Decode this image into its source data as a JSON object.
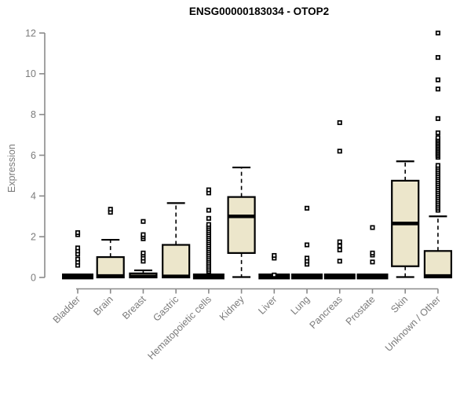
{
  "chart_data": {
    "type": "boxplot",
    "title": "ENSG00000183034 - OTOP2",
    "ylabel": "Expression",
    "xlabel": "",
    "ylim": [
      0,
      12
    ],
    "yticks": [
      0,
      2,
      4,
      6,
      8,
      10,
      12
    ],
    "grid": false,
    "legend": false,
    "style": {
      "box_fill": "#ECE6CB",
      "box_border": "#000000",
      "median_color": "#000000",
      "whisker_color": "#000000",
      "outlier_color": "#000000",
      "axis": "#8a8a8a",
      "tick_text": "#7b7b7b",
      "title_color": "#000000"
    },
    "categories": [
      "Bladder",
      "Brain",
      "Breast",
      "Gastric",
      "Hematopoietic cells",
      "Kidney",
      "Liver",
      "Lung",
      "Pancreas",
      "Prostate",
      "Skin",
      "Unknown / Other"
    ],
    "series": [
      {
        "label": "Bladder",
        "q1": 0,
        "median": 0.05,
        "q3": 0.1,
        "whisker_low": null,
        "whisker_high": null,
        "outliers": [
          0.6,
          0.75,
          0.9,
          1.15,
          1.3,
          1.45,
          2.1,
          2.2
        ]
      },
      {
        "label": "Brain",
        "q1": 0,
        "median": 0.07,
        "q3": 1.0,
        "whisker_low": null,
        "whisker_high": 1.85,
        "outliers": [
          3.2,
          3.35
        ]
      },
      {
        "label": "Breast",
        "q1": 0,
        "median": 0.05,
        "q3": 0.2,
        "whisker_low": null,
        "whisker_high": 0.35,
        "outliers": [
          0.8,
          0.95,
          1.1,
          1.2,
          1.9,
          2.0,
          2.1,
          2.75
        ]
      },
      {
        "label": "Gastric",
        "q1": 0,
        "median": 0.05,
        "q3": 1.6,
        "whisker_low": null,
        "whisker_high": 3.65,
        "outliers": []
      },
      {
        "label": "Hematopoietic cells",
        "q1": 0,
        "median": 0.05,
        "q3": 0.1,
        "whisker_low": null,
        "whisker_high": null,
        "outliers": [
          0.3,
          0.4,
          0.5,
          0.6,
          0.7,
          0.8,
          0.9,
          1.0,
          1.1,
          1.2,
          1.3,
          1.4,
          1.5,
          1.6,
          1.7,
          1.8,
          1.9,
          2.0,
          2.1,
          2.2,
          2.3,
          2.4,
          2.5,
          2.6,
          2.9,
          3.3,
          4.15,
          4.3
        ]
      },
      {
        "label": "Kidney",
        "q1": 1.2,
        "median": 3.0,
        "q3": 3.95,
        "whisker_low": 0.02,
        "whisker_high": 5.4,
        "outliers": []
      },
      {
        "label": "Liver",
        "q1": 0,
        "median": 0.05,
        "q3": 0.1,
        "whisker_low": null,
        "whisker_high": null,
        "outliers": [
          0.12,
          0.95,
          1.08
        ]
      },
      {
        "label": "Lung",
        "q1": 0,
        "median": 0.05,
        "q3": 0.1,
        "whisker_low": null,
        "whisker_high": null,
        "outliers": [
          0.65,
          0.8,
          0.95,
          1.6,
          3.4
        ]
      },
      {
        "label": "Pancreas",
        "q1": 0,
        "median": 0.05,
        "q3": 0.1,
        "whisker_low": null,
        "whisker_high": null,
        "outliers": [
          0.8,
          1.35,
          1.55,
          1.75,
          6.2,
          7.6
        ]
      },
      {
        "label": "Prostate",
        "q1": 0,
        "median": 0.05,
        "q3": 0.1,
        "whisker_low": null,
        "whisker_high": null,
        "outliers": [
          0.76,
          1.1,
          1.2,
          2.45
        ]
      },
      {
        "label": "Skin",
        "q1": 0.55,
        "median": 2.65,
        "q3": 4.75,
        "whisker_low": 0.02,
        "whisker_high": 5.7,
        "outliers": []
      },
      {
        "label": "Unknown / Other",
        "q1": 0,
        "median": 0.07,
        "q3": 1.3,
        "whisker_low": null,
        "whisker_high": 3.0,
        "outliers": [
          3.3,
          3.4,
          3.5,
          3.6,
          3.7,
          3.8,
          3.9,
          4.0,
          4.1,
          4.2,
          4.3,
          4.4,
          4.5,
          4.6,
          4.7,
          4.8,
          4.9,
          5.0,
          5.1,
          5.2,
          5.3,
          5.4,
          5.5,
          5.9,
          5.98,
          6.06,
          6.14,
          6.22,
          6.3,
          6.38,
          6.46,
          6.54,
          6.62,
          6.7,
          6.78,
          6.86,
          7.1,
          7.8,
          9.25,
          9.7,
          10.8,
          12.0
        ]
      }
    ]
  }
}
